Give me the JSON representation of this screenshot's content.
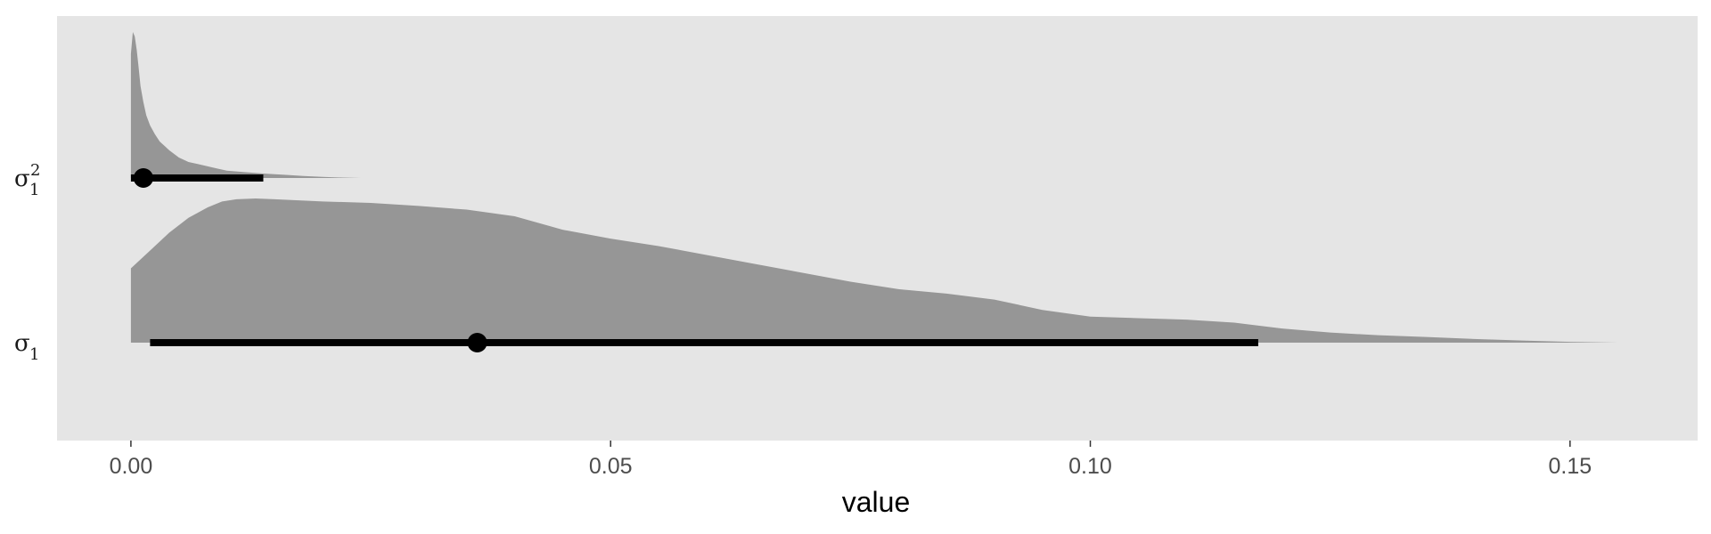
{
  "chart_data": {
    "type": "halfeye",
    "title": "",
    "xlabel": "value",
    "ylabel": "",
    "xlim": [
      -0.0077,
      0.1633
    ],
    "xticks": [
      0.0,
      0.05,
      0.1,
      0.15
    ],
    "xtick_labels": [
      "0.00",
      "0.05",
      "0.10",
      "0.15"
    ],
    "grid": false,
    "panel_background": "#e5e5e5",
    "density_fill": "#969696",
    "interval_color": "#000000",
    "categories": [
      {
        "symbol": "σ",
        "subscript": "1",
        "superscript": "2",
        "point_estimate": 0.0013,
        "interval": [
          0.0,
          0.0138
        ],
        "density": {
          "x": [
            0.0,
            0.0002,
            0.0004,
            0.0006,
            0.0008,
            0.001,
            0.0013,
            0.0016,
            0.002,
            0.0025,
            0.003,
            0.0035,
            0.004,
            0.005,
            0.006,
            0.007,
            0.008,
            0.009,
            0.01,
            0.012,
            0.014,
            0.016,
            0.018,
            0.02,
            0.022,
            0.024
          ],
          "y": [
            0.85,
            1.0,
            0.97,
            0.88,
            0.76,
            0.63,
            0.52,
            0.43,
            0.36,
            0.3,
            0.25,
            0.22,
            0.19,
            0.14,
            0.11,
            0.095,
            0.08,
            0.065,
            0.05,
            0.04,
            0.03,
            0.022,
            0.014,
            0.008,
            0.003,
            0.0
          ]
        }
      },
      {
        "symbol": "σ",
        "subscript": "1",
        "superscript": "",
        "point_estimate": 0.0361,
        "interval": [
          0.002,
          0.1175
        ],
        "density": {
          "x": [
            0.0,
            0.002,
            0.004,
            0.006,
            0.008,
            0.0095,
            0.011,
            0.013,
            0.015,
            0.02,
            0.025,
            0.03,
            0.035,
            0.04,
            0.045,
            0.05,
            0.055,
            0.06,
            0.065,
            0.07,
            0.075,
            0.08,
            0.085,
            0.09,
            0.095,
            0.1,
            0.105,
            0.11,
            0.115,
            0.12,
            0.125,
            0.13,
            0.135,
            0.14,
            0.145,
            0.15,
            0.155
          ],
          "y": [
            0.5,
            0.62,
            0.74,
            0.84,
            0.91,
            0.95,
            0.965,
            0.97,
            0.965,
            0.95,
            0.94,
            0.92,
            0.895,
            0.85,
            0.76,
            0.7,
            0.65,
            0.59,
            0.53,
            0.47,
            0.41,
            0.36,
            0.33,
            0.29,
            0.22,
            0.175,
            0.165,
            0.155,
            0.135,
            0.095,
            0.068,
            0.05,
            0.038,
            0.025,
            0.014,
            0.005,
            0.0
          ]
        }
      }
    ]
  }
}
